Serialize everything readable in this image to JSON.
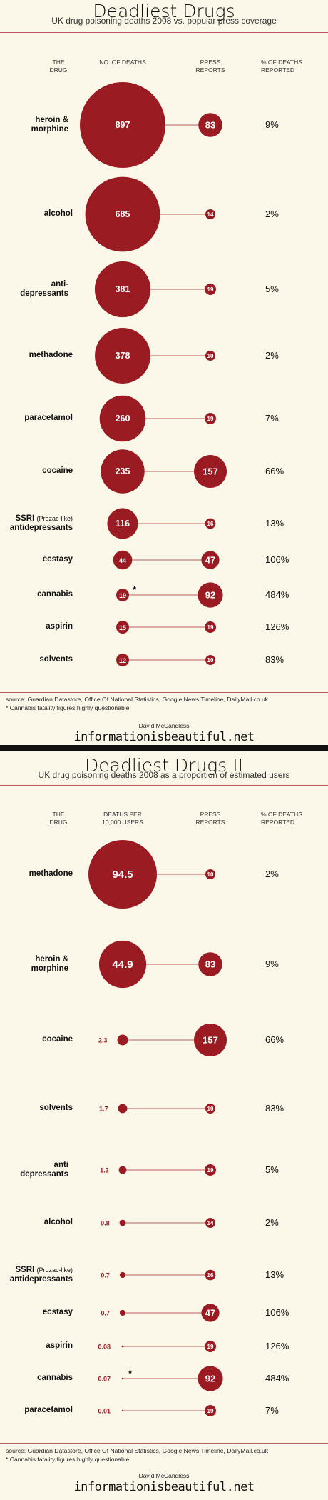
{
  "chart_data": [
    {
      "type": "bubble-table",
      "title": "Deadliest Drugs",
      "subtitle": "UK drug poisoning deaths 2008 vs. popular press coverage",
      "columns": {
        "drug": "THE DRUG",
        "metric": "NO. OF DEATHS",
        "press": "PRESS REPORTS",
        "pct": "% OF DEATHS REPORTED"
      },
      "rows": [
        {
          "drug": "heroin & morphine",
          "value": 897,
          "value_label": "897",
          "press": 83,
          "pct": "9%"
        },
        {
          "drug": "alcohol",
          "value": 685,
          "value_label": "685",
          "press": 14,
          "pct": "2%"
        },
        {
          "drug": "anti-depressants",
          "value": 381,
          "value_label": "381",
          "press": 19,
          "pct": "5%"
        },
        {
          "drug": "methadone",
          "value": 378,
          "value_label": "378",
          "press": 10,
          "pct": "2%"
        },
        {
          "drug": "paracetamol",
          "value": 260,
          "value_label": "260",
          "press": 19,
          "pct": "7%"
        },
        {
          "drug": "cocaine",
          "value": 235,
          "value_label": "235",
          "press": 157,
          "pct": "66%"
        },
        {
          "drug": "SSRI",
          "drug_note": "(Prozac-like)",
          "drug_line2": "antidepressants",
          "value": 116,
          "value_label": "116",
          "press": 16,
          "pct": "13%"
        },
        {
          "drug": "ecstasy",
          "value": 44,
          "value_label": "44",
          "press": 47,
          "pct": "106%"
        },
        {
          "drug": "cannabis",
          "value": 19,
          "value_label": "19",
          "press": 92,
          "pct": "484%",
          "asterisk": "*"
        },
        {
          "drug": "aspirin",
          "value": 15,
          "value_label": "15",
          "press": 19,
          "pct": "126%"
        },
        {
          "drug": "solvents",
          "value": 12,
          "value_label": "12",
          "press": 10,
          "pct": "83%"
        }
      ],
      "source": "source: Guardian Datastore, Office Of National Statistics, Google News Timeline, DailyMail.co.uk",
      "footnote": "* Cannabis fatality figures highly questionable"
    },
    {
      "type": "bubble-table",
      "title": "Deadliest Drugs II",
      "subtitle": "UK drug poisoning deaths 2008 as a proportion of estimated users",
      "columns": {
        "drug": "THE DRUG",
        "metric": "DEATHS PER 10,000 USERS",
        "press": "PRESS REPORTS",
        "pct": "% OF DEATHS REPORTED"
      },
      "rows": [
        {
          "drug": "methadone",
          "value": 94.5,
          "value_label": "94.5",
          "press": 10,
          "pct": "2%"
        },
        {
          "drug": "heroin & morphine",
          "value": 44.9,
          "value_label": "44.9",
          "press": 83,
          "pct": "9%"
        },
        {
          "drug": "cocaine",
          "value": 2.3,
          "value_label": "2.3",
          "press": 157,
          "pct": "66%"
        },
        {
          "drug": "solvents",
          "value": 1.7,
          "value_label": "1.7",
          "press": 10,
          "pct": "83%"
        },
        {
          "drug": "anti depressants",
          "value": 1.2,
          "value_label": "1.2",
          "press": 19,
          "pct": "5%"
        },
        {
          "drug": "alcohol",
          "value": 0.8,
          "value_label": "0.8",
          "press": 14,
          "pct": "2%"
        },
        {
          "drug": "SSRI",
          "drug_note": "(Prozac-like)",
          "drug_line2": "antidepressants",
          "value": 0.7,
          "value_label": "0.7",
          "press": 16,
          "pct": "13%"
        },
        {
          "drug": "ecstasy",
          "value": 0.7,
          "value_label": "0.7",
          "press": 47,
          "pct": "106%"
        },
        {
          "drug": "aspirin",
          "value": 0.08,
          "value_label": "0.08",
          "press": 19,
          "pct": "126%"
        },
        {
          "drug": "cannabis",
          "value": 0.07,
          "value_label": "0.07",
          "press": 92,
          "pct": "484%",
          "asterisk": "*"
        },
        {
          "drug": "paracetamol",
          "value": 0.01,
          "value_label": "0.01",
          "press": 19,
          "pct": "7%"
        }
      ],
      "source": "source: Guardian Datastore, Office Of National Statistics, Google News Timeline, DailyMail.co.uk",
      "footnote": "* Cannabis fatality figures highly questionable"
    }
  ],
  "credit": {
    "author": "David McCandless",
    "site": "informationisbeautiful.net"
  },
  "colors": {
    "accent": "#9b1b22",
    "background": "#fbf8e9",
    "rule": "#b45a5a",
    "bar": "#111111"
  }
}
